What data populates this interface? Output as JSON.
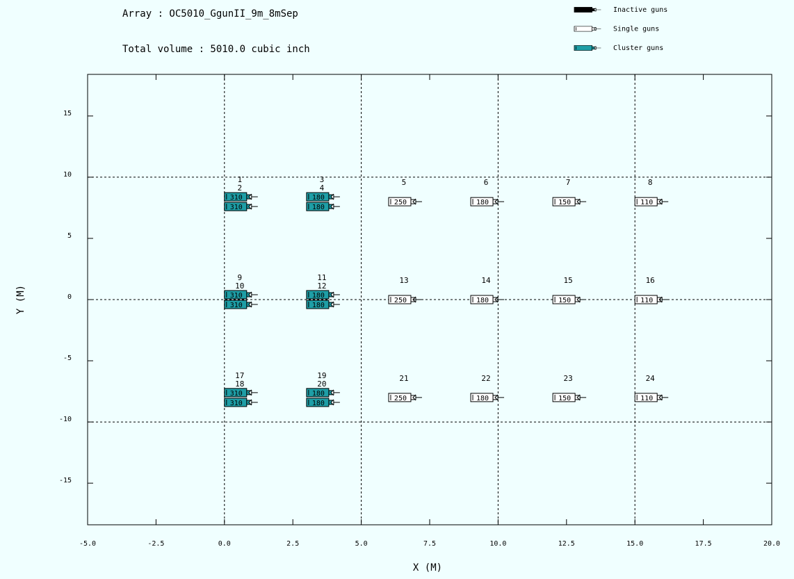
{
  "chart_data": {
    "type": "scatter",
    "title": "Array : OC5010_GgunII_9m_8mSep",
    "subtitle": "Total volume :  5010.0 cubic inch",
    "x_label": "X (M)",
    "y_label": "Y (M)",
    "xlim": [
      -5,
      20
    ],
    "ylim": [
      -18.4,
      18.4
    ],
    "xticks": [
      {
        "value": -5,
        "label": "-5.0"
      },
      {
        "value": -2.5,
        "label": "-2.5"
      },
      {
        "value": 0,
        "label": "0.0"
      },
      {
        "value": 2.5,
        "label": "2.5"
      },
      {
        "value": 5,
        "label": "5.0"
      },
      {
        "value": 7.5,
        "label": "7.5"
      },
      {
        "value": 10,
        "label": "10.0"
      },
      {
        "value": 12.5,
        "label": "12.5"
      },
      {
        "value": 15,
        "label": "15.0"
      },
      {
        "value": 17.5,
        "label": "17.5"
      },
      {
        "value": 20,
        "label": "20.0"
      }
    ],
    "yticks": [
      15,
      10,
      5,
      0,
      -5,
      -10,
      -15
    ],
    "xgrid": [
      0,
      5,
      10,
      15
    ],
    "ygrid": [
      10,
      0,
      -10
    ],
    "legend": "top-right",
    "series": [
      {
        "name": "Inactive guns",
        "color": "#000000",
        "labels": [],
        "x": [],
        "values": [],
        "volumes": []
      },
      {
        "name": "Single guns",
        "color": "#ffffff",
        "labels": [
          "5",
          "6",
          "7",
          "8",
          "13",
          "14",
          "15",
          "16",
          "21",
          "22",
          "23",
          "24"
        ],
        "x": [
          6,
          9,
          12,
          15,
          6,
          9,
          12,
          15,
          6,
          9,
          12,
          15
        ],
        "values": [
          8,
          8,
          8,
          8,
          0,
          0,
          0,
          0,
          -8,
          -8,
          -8,
          -8
        ],
        "volumes": [
          250,
          180,
          150,
          110,
          250,
          180,
          150,
          110,
          250,
          180,
          150,
          110
        ]
      },
      {
        "name": "Cluster guns",
        "color": "#1e9ea6",
        "labels": [
          "1",
          "2",
          "3",
          "4",
          "9",
          "10",
          "11",
          "12",
          "17",
          "18",
          "19",
          "20"
        ],
        "x": [
          0,
          0,
          3,
          3,
          0,
          0,
          3,
          3,
          0,
          0,
          3,
          3
        ],
        "values": [
          8.4,
          7.6,
          8.4,
          7.6,
          0.4,
          -0.4,
          0.4,
          -0.4,
          -7.6,
          -8.4,
          -7.6,
          -8.4
        ],
        "volumes": [
          310,
          310,
          180,
          180,
          310,
          310,
          180,
          180,
          310,
          310,
          180,
          180
        ]
      }
    ]
  }
}
